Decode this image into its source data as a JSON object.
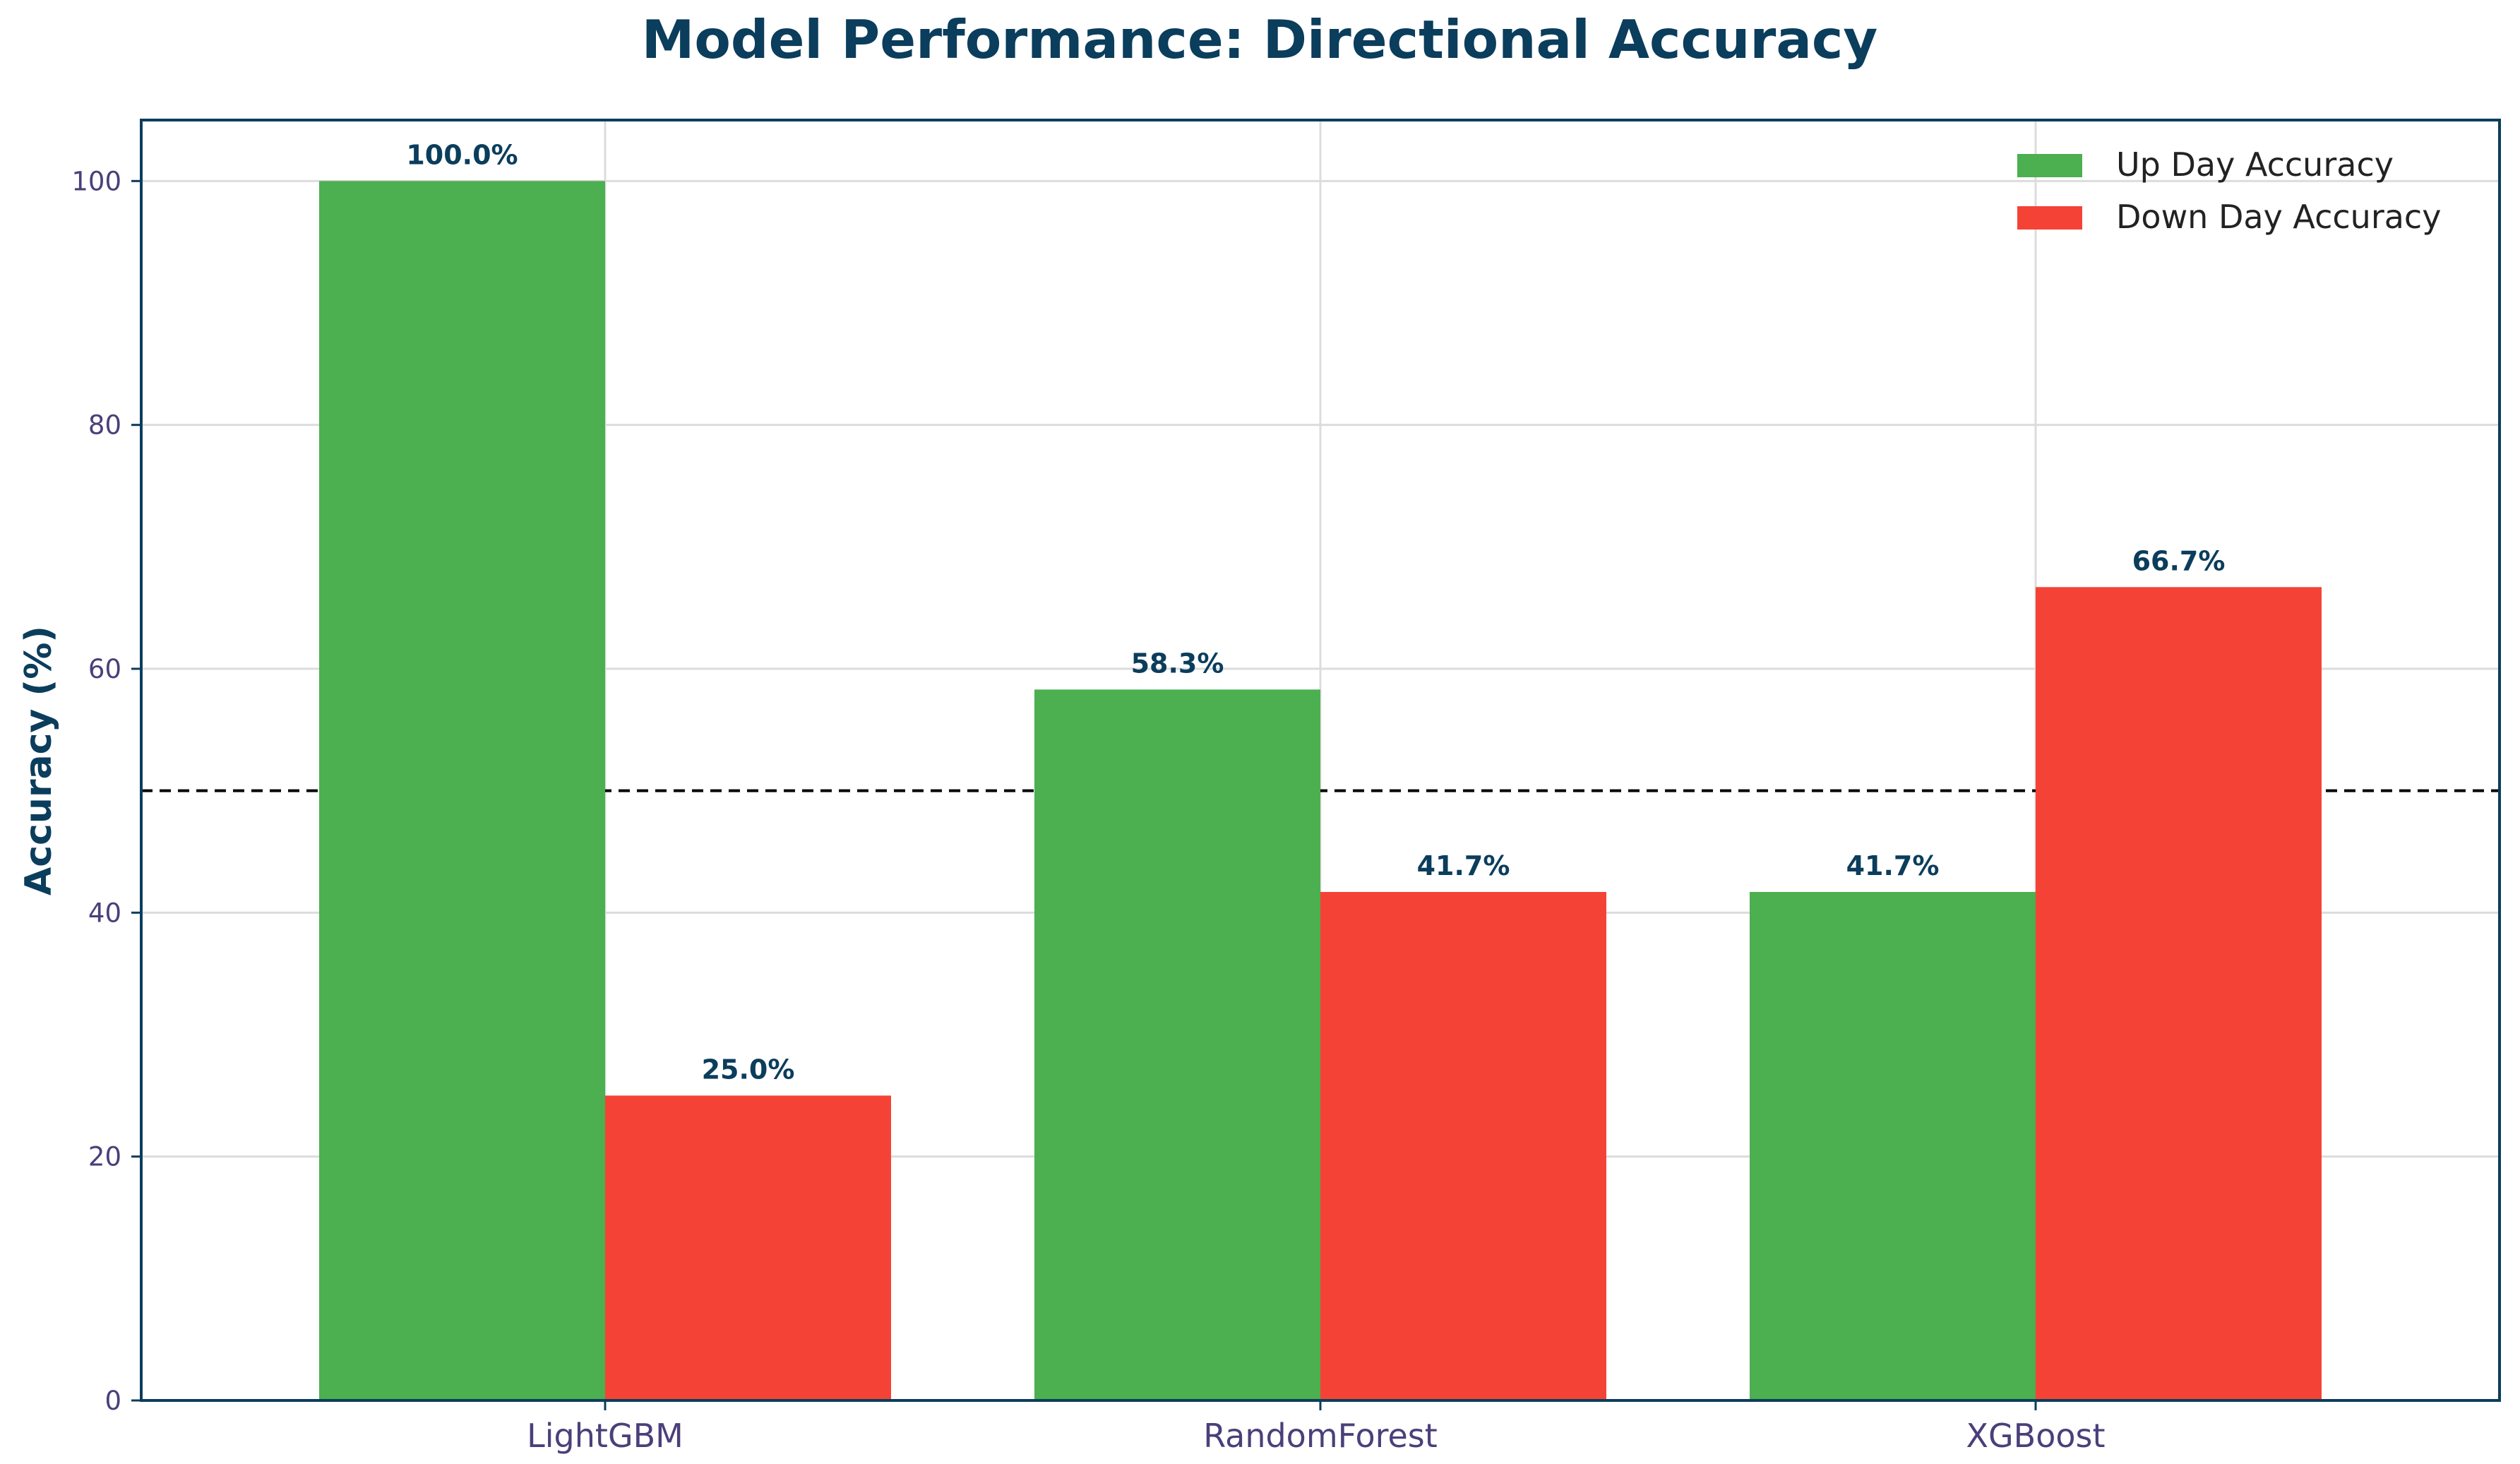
{
  "chart_data": {
    "type": "bar",
    "title": "Model Performance: Directional Accuracy",
    "xlabel": "",
    "ylabel": "Accuracy (%)",
    "categories": [
      "LightGBM",
      "RandomForest",
      "XGBoost"
    ],
    "series": [
      {
        "name": "Up Day Accuracy",
        "color": "#4caf50",
        "values": [
          100.0,
          58.3,
          41.7
        ],
        "labels": [
          "100.0%",
          "58.3%",
          "41.7%"
        ]
      },
      {
        "name": "Down Day Accuracy",
        "color": "#f44336",
        "values": [
          25.0,
          41.7,
          66.7
        ],
        "labels": [
          "25.0%",
          "41.7%",
          "66.7%"
        ]
      }
    ],
    "ylim": [
      0,
      105
    ],
    "yticks": [
      0,
      20,
      40,
      60,
      80,
      100
    ],
    "ytick_labels": [
      "0",
      "20",
      "40",
      "60",
      "80",
      "100"
    ],
    "reference_line": {
      "y": 50,
      "style": "dashed",
      "color": "#000000"
    },
    "grid": true,
    "legend_position": "top-right"
  }
}
